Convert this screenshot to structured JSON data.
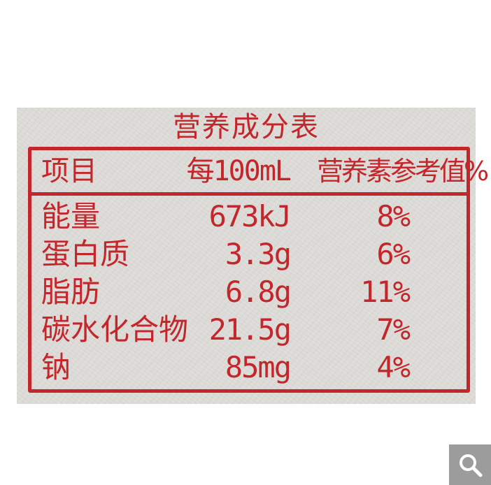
{
  "label": {
    "title": "营养成分表",
    "headers": [
      "项目",
      "每100mL",
      "营养素参考值%"
    ],
    "rows": [
      {
        "item": "能量",
        "per100ml": "673kJ",
        "nrv": "8%"
      },
      {
        "item": "蛋白质",
        "per100ml": "3.3g",
        "nrv": "6%"
      },
      {
        "item": "脂肪",
        "per100ml": "6.8g",
        "nrv": "11%"
      },
      {
        "item": "碳水化合物",
        "per100ml": "21.5g",
        "nrv": "7%"
      },
      {
        "item": "钠",
        "per100ml": "85mg",
        "nrv": "4%"
      }
    ]
  },
  "controls": {
    "zoom_icon": "magnifier-icon"
  },
  "colors": {
    "ink": "#c3262b",
    "paper": "#dcdad7",
    "zoom_button": "#9c9c9c"
  }
}
